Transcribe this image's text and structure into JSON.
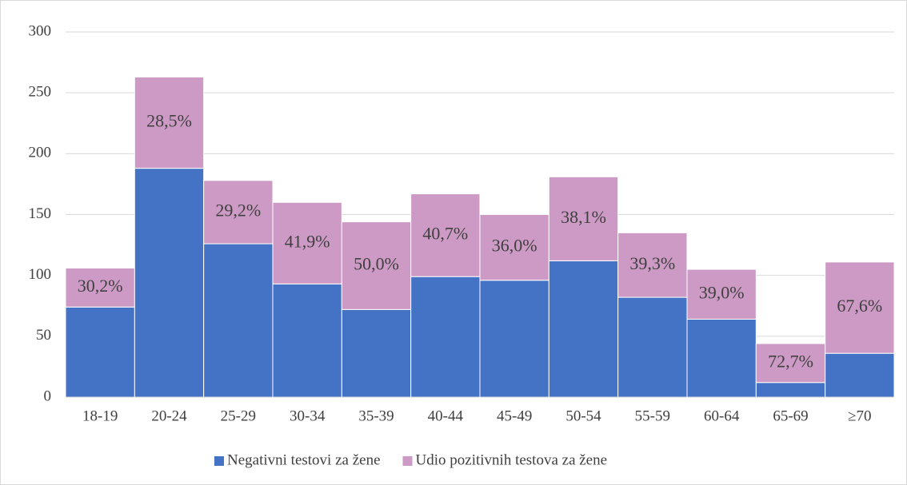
{
  "chart_data": {
    "type": "stacked_bar",
    "categories": [
      "18-19",
      "20-24",
      "25-29",
      "30-34",
      "35-39",
      "40-44",
      "45-49",
      "50-54",
      "55-59",
      "60-64",
      "65-69",
      "≥70"
    ],
    "series": [
      {
        "name": "Negativni testovi za žene",
        "color": "#4472c4",
        "values": [
          74,
          188,
          126,
          93,
          72,
          99,
          96,
          112,
          82,
          64,
          12,
          36
        ]
      },
      {
        "name": "Udio pozitivnih testova za žene",
        "color": "#cc9ac4",
        "values": [
          32,
          75,
          52,
          67,
          72,
          68,
          54,
          69,
          53,
          41,
          32,
          75
        ],
        "share_labels": [
          "30,2%",
          "28,5%",
          "29,2%",
          "41,9%",
          "50,0%",
          "40,7%",
          "36,0%",
          "38,1%",
          "39,3%",
          "39,0%",
          "72,7%",
          "67,6%"
        ]
      }
    ],
    "ylim": [
      0,
      300
    ],
    "yticks": [
      0,
      50,
      100,
      150,
      200,
      250,
      300
    ],
    "grid": true,
    "legend": "bottom"
  }
}
